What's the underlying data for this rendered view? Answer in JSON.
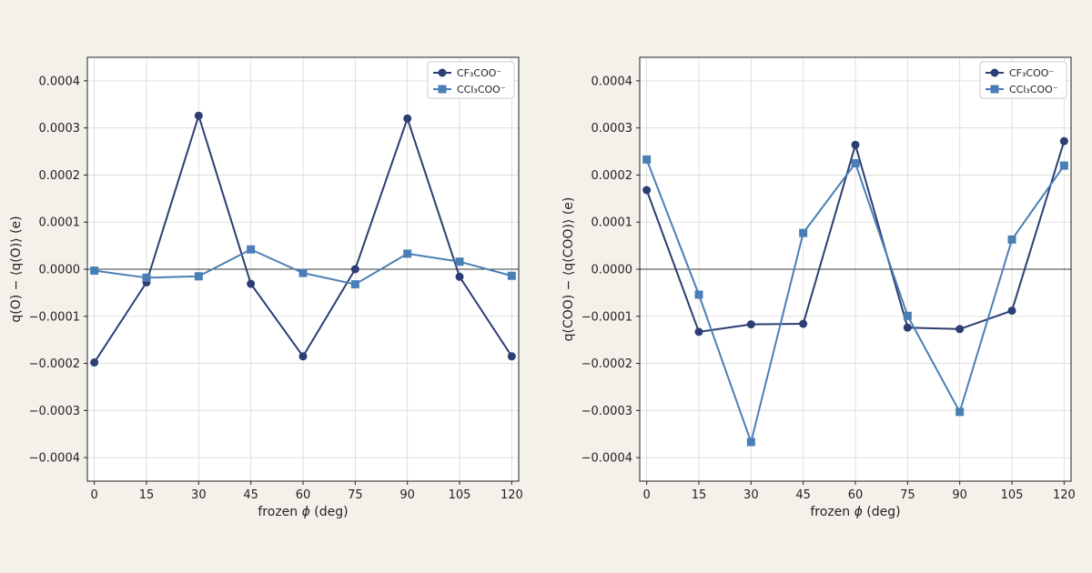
{
  "chart_data": [
    {
      "type": "line",
      "x": [
        0,
        15,
        30,
        45,
        60,
        75,
        90,
        105,
        120
      ],
      "xticks": [
        "0",
        "15",
        "30",
        "45",
        "60",
        "75",
        "90",
        "105",
        "120"
      ],
      "xlabel_prefix": "frozen ",
      "xlabel_symbol": "ϕ",
      "xlabel_suffix": " (deg)",
      "ylabel": "q(O) − ⟨q(O)⟩ (e)",
      "yticks": [
        "−0.0004",
        "−0.0003",
        "−0.0002",
        "−0.0001",
        "0.0000",
        "0.0001",
        "0.0002",
        "0.0003",
        "0.0004"
      ],
      "ytick_values": [
        -0.0004,
        -0.0003,
        -0.0002,
        -0.0001,
        0.0,
        0.0001,
        0.0002,
        0.0003,
        0.0004
      ],
      "xlim": [
        -2,
        122
      ],
      "ylim": [
        -0.00045,
        0.00045
      ],
      "grid": true,
      "zero_line": true,
      "legend": "top-right",
      "series": [
        {
          "name": "CF₃COO⁻",
          "marker": "circle",
          "color": "#2c3e73",
          "values": [
            -0.000198,
            -2.8e-05,
            0.000326,
            -3.1e-05,
            -0.000185,
            0.0,
            0.00032,
            -1.6e-05,
            -0.000185
          ]
        },
        {
          "name": "CCl₃COO⁻",
          "marker": "square",
          "color": "#4a7fb5",
          "values": [
            -3e-06,
            -1.8e-05,
            -1.5e-05,
            4.2e-05,
            -8e-06,
            -3.2e-05,
            3.3e-05,
            1.6e-05,
            -1.4e-05
          ]
        }
      ]
    },
    {
      "type": "line",
      "x": [
        0,
        15,
        30,
        45,
        60,
        75,
        90,
        105,
        120
      ],
      "xticks": [
        "0",
        "15",
        "30",
        "45",
        "60",
        "75",
        "90",
        "105",
        "120"
      ],
      "xlabel_prefix": "frozen ",
      "xlabel_symbol": "ϕ",
      "xlabel_suffix": " (deg)",
      "ylabel": "q(COO) − ⟨q(COO)⟩ (e)",
      "yticks": [
        "−0.0004",
        "−0.0003",
        "−0.0002",
        "−0.0001",
        "0.0000",
        "0.0001",
        "0.0002",
        "0.0003",
        "0.0004"
      ],
      "ytick_values": [
        -0.0004,
        -0.0003,
        -0.0002,
        -0.0001,
        0.0,
        0.0001,
        0.0002,
        0.0003,
        0.0004
      ],
      "xlim": [
        -2,
        122
      ],
      "ylim": [
        -0.00045,
        0.00045
      ],
      "grid": true,
      "zero_line": true,
      "legend": "top-right",
      "series": [
        {
          "name": "CF₃COO⁻",
          "marker": "circle",
          "color": "#2c3e73",
          "values": [
            0.000168,
            -0.000133,
            -0.000117,
            -0.000116,
            0.000264,
            -0.000124,
            -0.000127,
            -8.8e-05,
            0.000272
          ]
        },
        {
          "name": "CCl₃COO⁻",
          "marker": "square",
          "color": "#4a7fb5",
          "values": [
            0.000233,
            -5.4e-05,
            -0.000367,
            7.7e-05,
            0.000225,
            -9.9e-05,
            -0.000303,
            6.3e-05,
            0.00022
          ]
        }
      ]
    }
  ]
}
